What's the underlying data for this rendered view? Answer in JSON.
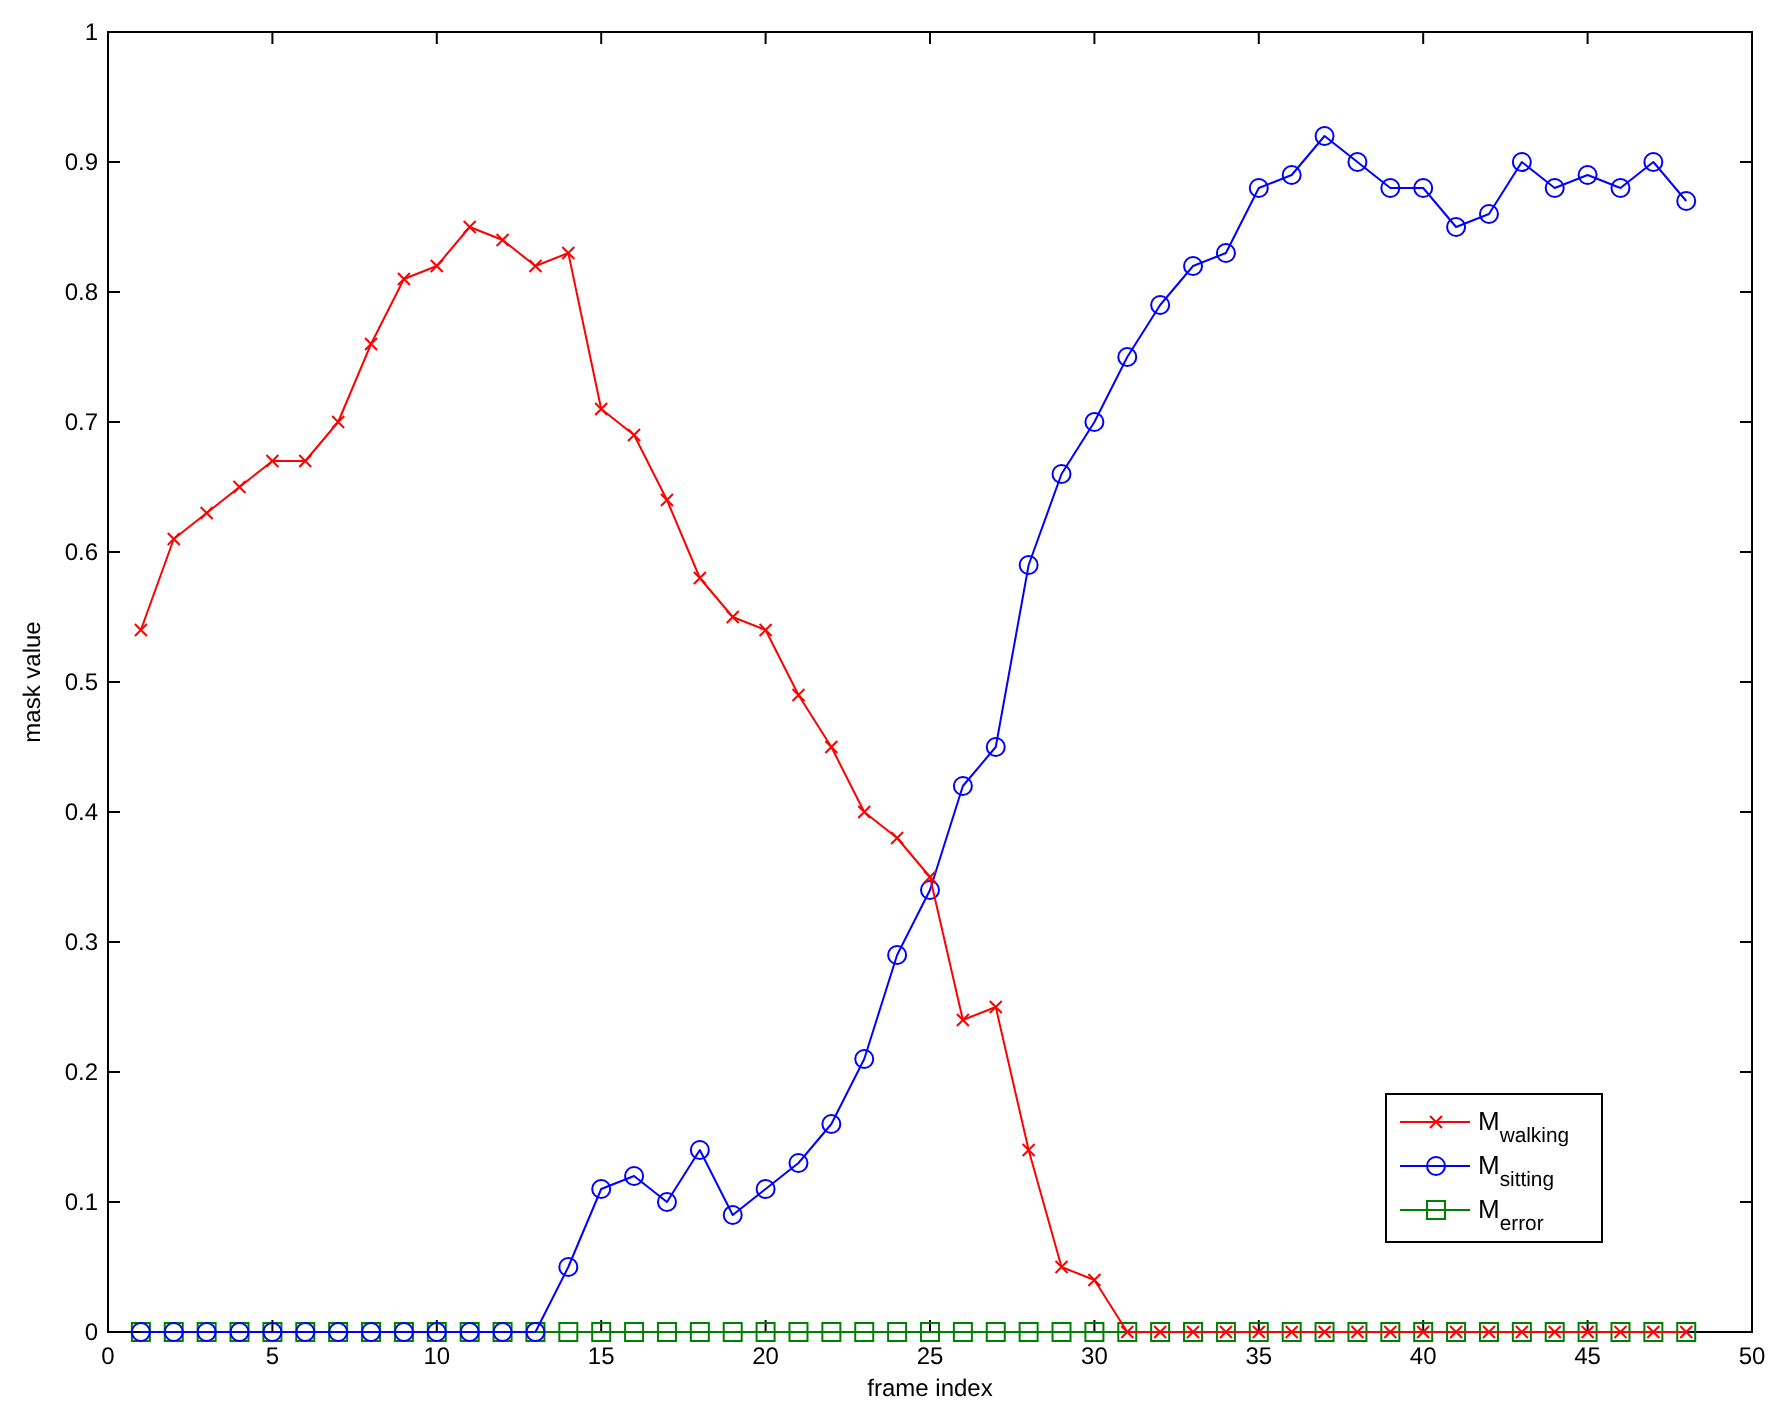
{
  "chart_data": {
    "type": "line",
    "xlabel": "frame index",
    "ylabel": "mask value",
    "x": [
      1,
      2,
      3,
      4,
      5,
      6,
      7,
      8,
      9,
      10,
      11,
      12,
      13,
      14,
      15,
      16,
      17,
      18,
      19,
      20,
      21,
      22,
      23,
      24,
      25,
      26,
      27,
      28,
      29,
      30,
      31,
      32,
      33,
      34,
      35,
      36,
      37,
      38,
      39,
      40,
      41,
      42,
      43,
      44,
      45,
      46,
      47,
      48
    ],
    "series": [
      {
        "name": "M$_{walking}$",
        "color": "#ff0000",
        "marker": "cross",
        "values": [
          0.54,
          0.61,
          0.63,
          0.65,
          0.67,
          0.67,
          0.7,
          0.76,
          0.81,
          0.82,
          0.85,
          0.84,
          0.82,
          0.83,
          0.71,
          0.69,
          0.64,
          0.58,
          0.55,
          0.54,
          0.49,
          0.45,
          0.4,
          0.38,
          0.35,
          0.24,
          0.25,
          0.14,
          0.05,
          0.04,
          0,
          0,
          0,
          0,
          0,
          0,
          0,
          0,
          0,
          0,
          0,
          0,
          0,
          0,
          0,
          0,
          0,
          0
        ]
      },
      {
        "name": "M$_{sitting}$",
        "color": "#0000ff",
        "marker": "circle",
        "values": [
          0,
          0,
          0,
          0,
          0,
          0,
          0,
          0,
          0,
          0,
          0,
          0,
          0,
          0.05,
          0.11,
          0.12,
          0.1,
          0.14,
          0.09,
          0.11,
          0.13,
          0.16,
          0.21,
          0.29,
          0.34,
          0.42,
          0.45,
          0.59,
          0.66,
          0.7,
          0.75,
          0.79,
          0.82,
          0.83,
          0.88,
          0.89,
          0.92,
          0.9,
          0.88,
          0.88,
          0.85,
          0.86,
          0.9,
          0.88,
          0.89,
          0.88,
          0.9,
          0.87
        ]
      },
      {
        "name": "M$_{error}$",
        "color": "#008000",
        "marker": "square",
        "values": [
          0,
          0,
          0,
          0,
          0,
          0,
          0,
          0,
          0,
          0,
          0,
          0,
          0,
          0,
          0,
          0,
          0,
          0,
          0,
          0,
          0,
          0,
          0,
          0,
          0,
          0,
          0,
          0,
          0,
          0,
          0,
          0,
          0,
          0,
          0,
          0,
          0,
          0,
          0,
          0,
          0,
          0,
          0,
          0,
          0,
          0,
          0,
          0
        ]
      }
    ],
    "xlim": [
      0,
      50
    ],
    "xticks": [
      0,
      5,
      10,
      15,
      20,
      25,
      30,
      35,
      40,
      45,
      50
    ],
    "ylim": [
      0,
      1
    ],
    "yticks": [
      0,
      0.1,
      0.2,
      0.3,
      0.4,
      0.5,
      0.6,
      0.7,
      0.8,
      0.9,
      1
    ],
    "grid": false,
    "legend": "bottom right",
    "line_style": "solid"
  }
}
